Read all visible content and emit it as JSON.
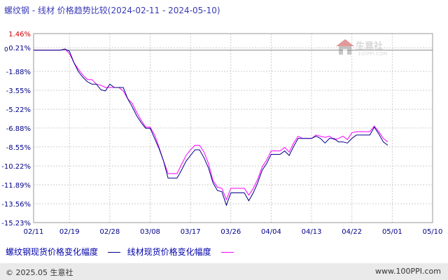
{
  "title": "螺纹钢 - 线材 价格趋势比较(2024-02-11 - 2024-05-10)",
  "watermark": {
    "text": "生意社",
    "url": "100PPI.COM"
  },
  "footer": {
    "copyright": "© 2025.05 生意社",
    "url": "www.100PPI.com"
  },
  "colors": {
    "series1": "#000088",
    "series2": "#ff00ff",
    "yaxis_top_label": "#cc0000",
    "grid": "#cccccc"
  },
  "chart_data": {
    "type": "line",
    "y_tick_labels": [
      "1.46%",
      "0.21%",
      "-1.88%",
      "-3.55%",
      "-5.22%",
      "-6.88%",
      "-8.55%",
      "-10.22%",
      "-11.89%",
      "-13.56%",
      "-15.23%"
    ],
    "y_ticks": [
      1.46,
      0.21,
      -1.88,
      -3.55,
      -5.22,
      -6.88,
      -8.55,
      -10.22,
      -11.89,
      -13.56,
      -15.23
    ],
    "zero_label": "0",
    "ylim": [
      -15.23,
      1.46
    ],
    "x_tick_labels": [
      "02/11",
      "02/19",
      "02/28",
      "03/08",
      "03/17",
      "03/26",
      "04/04",
      "04/13",
      "04/22",
      "05/01",
      "05/10"
    ],
    "x_tick_days": [
      0,
      8,
      17,
      26,
      35,
      44,
      53,
      62,
      71,
      80,
      89
    ],
    "series": [
      {
        "name": "螺纹钢现货价格变化幅度",
        "points": [
          [
            0,
            0
          ],
          [
            5,
            0
          ],
          [
            6,
            0
          ],
          [
            7,
            0.1
          ],
          [
            8,
            -0.1
          ],
          [
            9,
            -1.1
          ],
          [
            10,
            -1.9
          ],
          [
            11,
            -2.4
          ],
          [
            12,
            -2.8
          ],
          [
            13,
            -3.0
          ],
          [
            14,
            -3.0
          ],
          [
            15,
            -3.5
          ],
          [
            16,
            -3.6
          ],
          [
            17,
            -3.0
          ],
          [
            18,
            -3.3
          ],
          [
            19,
            -3.3
          ],
          [
            20,
            -3.3
          ],
          [
            21,
            -4.3
          ],
          [
            22,
            -5.0
          ],
          [
            23,
            -5.8
          ],
          [
            24,
            -6.4
          ],
          [
            25,
            -6.9
          ],
          [
            26,
            -6.9
          ],
          [
            27,
            -7.8
          ],
          [
            28,
            -8.7
          ],
          [
            29,
            -9.8
          ],
          [
            30,
            -11.3
          ],
          [
            31,
            -11.3
          ],
          [
            32,
            -11.3
          ],
          [
            33,
            -10.6
          ],
          [
            34,
            -9.8
          ],
          [
            35,
            -9.3
          ],
          [
            36,
            -8.8
          ],
          [
            37,
            -8.8
          ],
          [
            38,
            -9.5
          ],
          [
            39,
            -10.4
          ],
          [
            40,
            -11.7
          ],
          [
            41,
            -12.4
          ],
          [
            42,
            -12.5
          ],
          [
            43,
            -13.7
          ],
          [
            44,
            -12.6
          ],
          [
            45,
            -12.6
          ],
          [
            46,
            -12.6
          ],
          [
            47,
            -12.6
          ],
          [
            48,
            -13.3
          ],
          [
            49,
            -12.6
          ],
          [
            50,
            -11.7
          ],
          [
            51,
            -10.6
          ],
          [
            52,
            -10.0
          ],
          [
            53,
            -9.2
          ],
          [
            54,
            -9.2
          ],
          [
            55,
            -9.2
          ],
          [
            56,
            -8.9
          ],
          [
            57,
            -9.3
          ],
          [
            58,
            -8.5
          ],
          [
            59,
            -7.8
          ],
          [
            60,
            -7.8
          ],
          [
            61,
            -7.8
          ],
          [
            62,
            -7.8
          ],
          [
            63,
            -7.6
          ],
          [
            64,
            -7.8
          ],
          [
            65,
            -8.2
          ],
          [
            66,
            -7.8
          ],
          [
            67,
            -7.8
          ],
          [
            68,
            -8.1
          ],
          [
            69,
            -8.1
          ],
          [
            70,
            -8.2
          ],
          [
            71,
            -7.8
          ],
          [
            72,
            -7.5
          ],
          [
            73,
            -7.5
          ],
          [
            74,
            -7.5
          ],
          [
            75,
            -7.5
          ],
          [
            76,
            -6.8
          ],
          [
            77,
            -7.4
          ],
          [
            78,
            -8.1
          ],
          [
            79,
            -8.4
          ]
        ]
      },
      {
        "name": "线材现货价格变化幅度",
        "points": [
          [
            0,
            0
          ],
          [
            5,
            0
          ],
          [
            6,
            0
          ],
          [
            7,
            0.1
          ],
          [
            8,
            -0.3
          ],
          [
            9,
            -1.1
          ],
          [
            10,
            -1.7
          ],
          [
            11,
            -2.2
          ],
          [
            12,
            -2.6
          ],
          [
            13,
            -2.6
          ],
          [
            14,
            -3.0
          ],
          [
            15,
            -3.1
          ],
          [
            16,
            -3.3
          ],
          [
            17,
            -3.3
          ],
          [
            18,
            -3.3
          ],
          [
            19,
            -3.3
          ],
          [
            20,
            -3.6
          ],
          [
            21,
            -4.3
          ],
          [
            22,
            -4.7
          ],
          [
            23,
            -5.5
          ],
          [
            24,
            -6.2
          ],
          [
            25,
            -6.8
          ],
          [
            26,
            -6.8
          ],
          [
            27,
            -7.5
          ],
          [
            28,
            -8.6
          ],
          [
            29,
            -9.8
          ],
          [
            30,
            -10.9
          ],
          [
            31,
            -10.9
          ],
          [
            32,
            -10.9
          ],
          [
            33,
            -10.1
          ],
          [
            34,
            -9.3
          ],
          [
            35,
            -8.8
          ],
          [
            36,
            -8.4
          ],
          [
            37,
            -8.4
          ],
          [
            38,
            -9.0
          ],
          [
            39,
            -10.0
          ],
          [
            40,
            -11.5
          ],
          [
            41,
            -12.1
          ],
          [
            42,
            -12.2
          ],
          [
            43,
            -13.2
          ],
          [
            44,
            -12.2
          ],
          [
            45,
            -12.2
          ],
          [
            46,
            -12.2
          ],
          [
            47,
            -12.2
          ],
          [
            48,
            -12.8
          ],
          [
            49,
            -12.2
          ],
          [
            50,
            -11.4
          ],
          [
            51,
            -10.3
          ],
          [
            52,
            -9.7
          ],
          [
            53,
            -8.9
          ],
          [
            54,
            -8.9
          ],
          [
            55,
            -8.9
          ],
          [
            56,
            -8.6
          ],
          [
            57,
            -9.0
          ],
          [
            58,
            -8.2
          ],
          [
            59,
            -7.6
          ],
          [
            60,
            -7.8
          ],
          [
            61,
            -7.8
          ],
          [
            62,
            -7.8
          ],
          [
            63,
            -7.5
          ],
          [
            64,
            -7.6
          ],
          [
            65,
            -7.7
          ],
          [
            66,
            -7.6
          ],
          [
            67,
            -7.9
          ],
          [
            68,
            -7.8
          ],
          [
            69,
            -7.6
          ],
          [
            70,
            -7.9
          ],
          [
            71,
            -7.3
          ],
          [
            72,
            -7.2
          ],
          [
            73,
            -7.2
          ],
          [
            74,
            -7.2
          ],
          [
            75,
            -7.2
          ],
          [
            76,
            -6.7
          ],
          [
            77,
            -7.2
          ],
          [
            78,
            -7.8
          ],
          [
            79,
            -8.1
          ]
        ]
      }
    ]
  }
}
